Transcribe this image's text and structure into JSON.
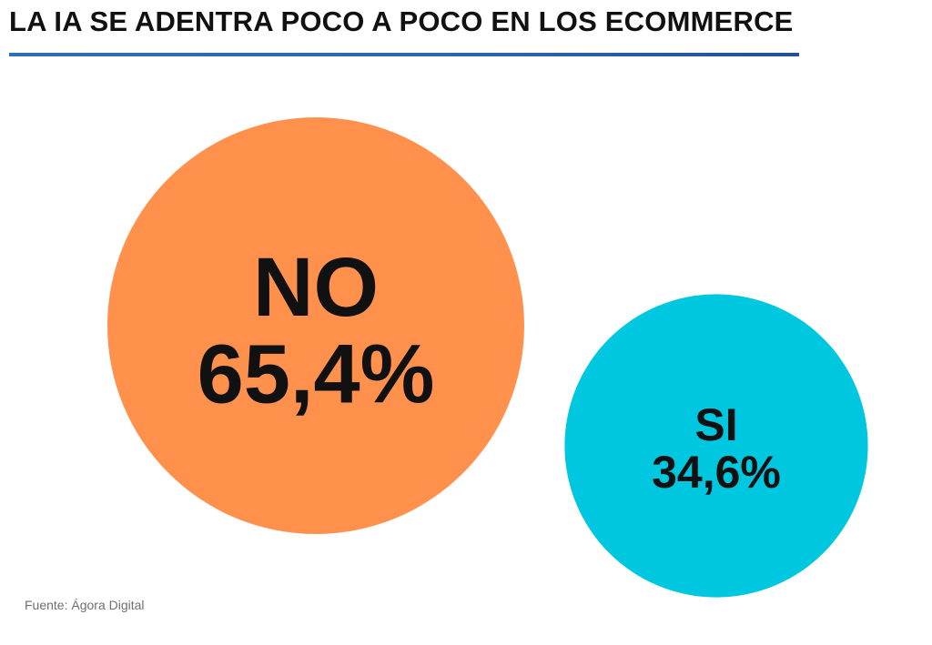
{
  "header": {
    "title": "LA IA SE ADENTRA POCO A POCO EN LOS ECOMMERCE",
    "underline_color": "#2b66b0"
  },
  "chart_data": {
    "type": "bubble",
    "title": "LA IA SE ADENTRA POCO A POCO EN LOS ECOMMERCE",
    "unit": "%",
    "items": [
      {
        "label": "NO",
        "value": 65.4,
        "value_text": "65,4%",
        "color": "#ff914d"
      },
      {
        "label": "SI",
        "value": 34.6,
        "value_text": "34,6%",
        "color": "#00c7e0"
      }
    ]
  },
  "footer": {
    "source": "Fuente: Ágora Digital"
  }
}
